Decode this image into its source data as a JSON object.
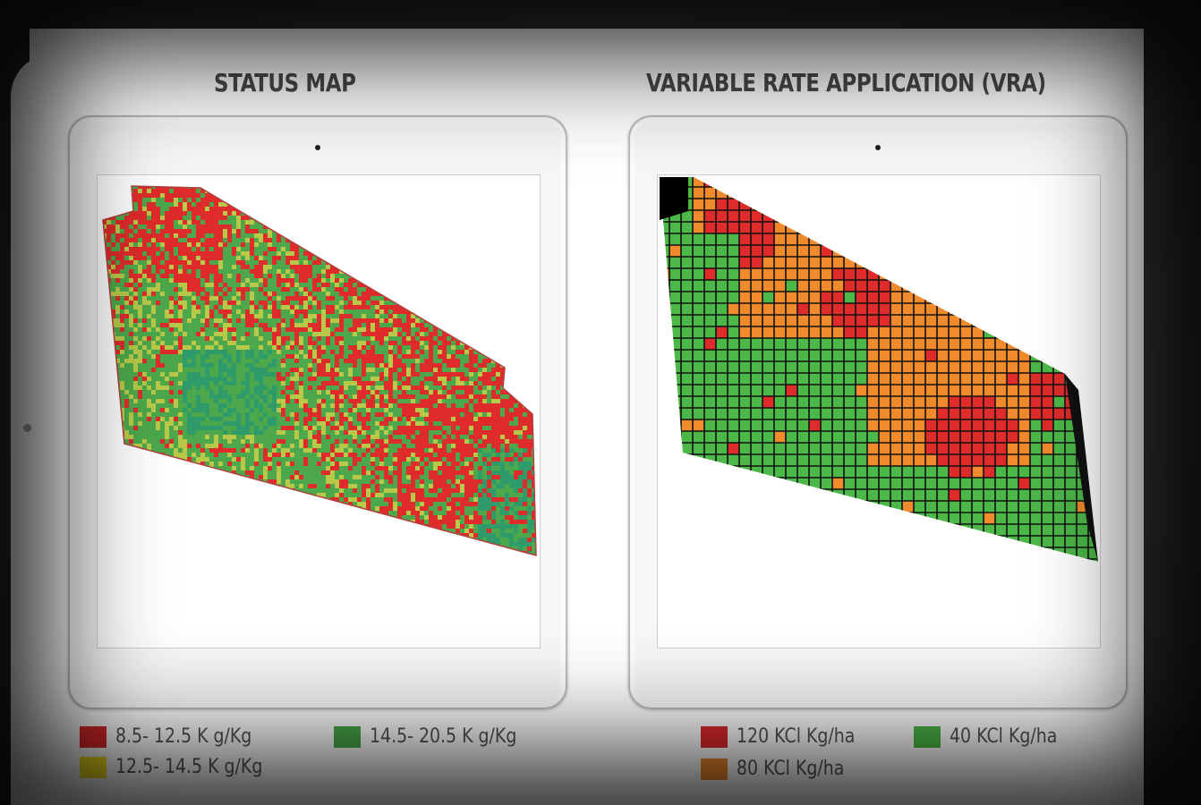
{
  "panels": {
    "status_map": {
      "title": "STATUS MAP",
      "legend": [
        {
          "label": "8.5- 12.5 K g/Kg",
          "color": "#e02b2b"
        },
        {
          "label": "12.5- 14.5 K g/Kg",
          "color": "#f5e11f"
        },
        {
          "label": "14.5- 20.5 K g/Kg",
          "color": "#4ca84b"
        }
      ]
    },
    "vra_map": {
      "title": "VARIABLE RATE APPLICATION (VRA)",
      "legend": [
        {
          "label": "120 KCl Kg/ha",
          "color": "#e02b2b"
        },
        {
          "label": "80 KCl Kg/ha",
          "color": "#f08a2c"
        },
        {
          "label": "40 KCl Kg/ha",
          "color": "#4cb848"
        }
      ]
    }
  },
  "colors": {
    "low": "#e02b2b",
    "mid": "#f5e11f",
    "high": "#4ca84b",
    "high_dark": "#2f9a6a",
    "vra_orange": "#f08a2c",
    "vra_green": "#4cb848",
    "grid_line": "#111111"
  }
}
